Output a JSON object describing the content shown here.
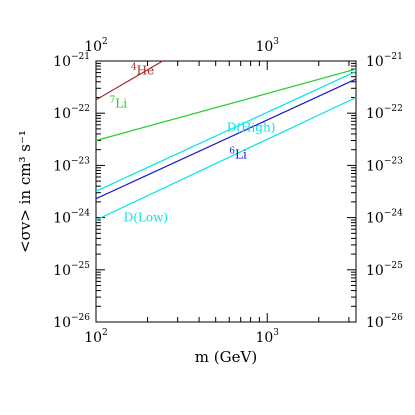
{
  "chart_data": {
    "type": "line",
    "xlabel": "m  (GeV)",
    "ylabel": "<σv>  in  cm³ s⁻¹",
    "xscale": "log",
    "yscale": "log",
    "xlim": [
      100,
      3300
    ],
    "ylim": [
      1e-26,
      1e-21
    ],
    "x_ticks": [
      {
        "value": 100,
        "label": "10"
      },
      {
        "value": 1000,
        "label": "10"
      }
    ],
    "x_tick_exponents": [
      "2",
      "3"
    ],
    "y_ticks": [
      {
        "value": 1e-21,
        "label": "10",
        "exp": "−21"
      },
      {
        "value": 1e-22,
        "label": "10",
        "exp": "−22"
      },
      {
        "value": 1e-23,
        "label": "10",
        "exp": "−23"
      },
      {
        "value": 1e-24,
        "label": "10",
        "exp": "−24"
      },
      {
        "value": 1e-25,
        "label": "10",
        "exp": "−25"
      },
      {
        "value": 1e-26,
        "label": "10",
        "exp": "−26"
      }
    ],
    "grid": false,
    "series": [
      {
        "name": "4He",
        "label_sup": "4",
        "label_main": "He",
        "color": "#a52a2a",
        "x": [
          100,
          245
        ],
        "y": [
          1.8e-22,
          1e-21
        ],
        "label_at": [
          160,
          5.5e-22
        ]
      },
      {
        "name": "7Li",
        "label_sup": "7",
        "label_main": "Li",
        "color": "#22cc22",
        "x": [
          100,
          3300
        ],
        "y": [
          3e-23,
          7e-22
        ],
        "label_at": [
          120,
          1.3e-22
        ]
      },
      {
        "name": "D(High)",
        "label_sup": "",
        "label_main": "D(High)",
        "color": "#00e5e5",
        "x": [
          100,
          3300
        ],
        "y": [
          3.2e-24,
          6.3e-22
        ],
        "label_at": [
          580,
          4.5e-23
        ]
      },
      {
        "name": "6Li",
        "label_sup": "6",
        "label_main": "Li",
        "color": "#1a1acc",
        "x": [
          100,
          3300
        ],
        "y": [
          2.3e-24,
          4.5e-22
        ],
        "label_at": [
          600,
          1.35e-23
        ]
      },
      {
        "name": "D(Low)",
        "label_sup": "",
        "label_main": "D(Low)",
        "color": "#00e5e5",
        "x": [
          100,
          3300
        ],
        "y": [
          9e-25,
          2e-22
        ],
        "label_at": [
          145,
          8.5e-25
        ]
      }
    ]
  }
}
